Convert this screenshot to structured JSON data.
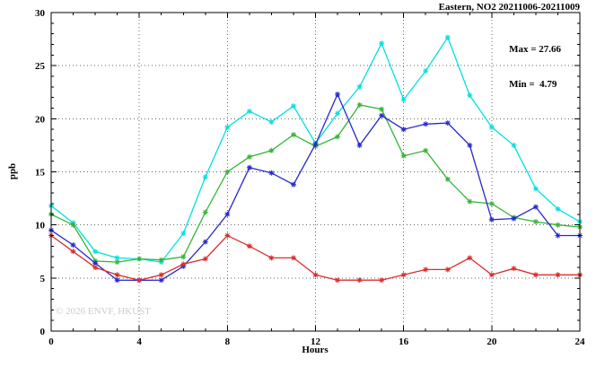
{
  "annotations": {
    "max_label": "Max = 27.66",
    "min_label": "Min =  4.79"
  },
  "watermark": "© 2026 ENVF, HKUST",
  "chart_data": {
    "type": "line",
    "title": "Eastern, NO2 20211006-20211009",
    "xlabel": "Hours",
    "ylabel": "ppb",
    "xlim": [
      0,
      24
    ],
    "ylim": [
      0,
      30
    ],
    "xticks": [
      0,
      4,
      8,
      12,
      16,
      20,
      24
    ],
    "yticks": [
      0,
      5,
      10,
      15,
      20,
      25,
      30
    ],
    "grid": true,
    "legend": "none",
    "max_value": 27.66,
    "min_value": 4.79,
    "x": [
      0,
      1,
      2,
      3,
      4,
      5,
      6,
      7,
      8,
      9,
      10,
      11,
      12,
      13,
      14,
      15,
      16,
      17,
      18,
      19,
      20,
      21,
      22,
      23,
      24
    ],
    "series": [
      {
        "name": "cyan",
        "color": "#00e0e0",
        "values": [
          11.8,
          10.2,
          7.5,
          6.9,
          6.8,
          6.5,
          9.2,
          14.5,
          19.2,
          20.7,
          19.7,
          21.2,
          17.7,
          20.5,
          23.0,
          27.1,
          21.8,
          24.5,
          27.66,
          22.2,
          19.2,
          17.5,
          13.4,
          11.5,
          10.3
        ]
      },
      {
        "name": "green",
        "color": "#35b435",
        "values": [
          11.0,
          10.0,
          6.6,
          6.5,
          6.8,
          6.7,
          7.0,
          11.2,
          15.0,
          16.4,
          17.0,
          18.5,
          17.4,
          18.3,
          21.3,
          20.9,
          16.5,
          17.0,
          14.3,
          12.2,
          12.0,
          10.7,
          10.3,
          10.0,
          9.8
        ]
      },
      {
        "name": "blue",
        "color": "#2828cc",
        "values": [
          9.5,
          8.1,
          6.4,
          4.8,
          4.79,
          4.8,
          6.1,
          8.4,
          11.0,
          15.4,
          14.9,
          13.8,
          17.6,
          22.3,
          17.5,
          20.3,
          19.0,
          19.5,
          19.6,
          17.5,
          10.5,
          10.6,
          11.7,
          9.0,
          9.0
        ]
      },
      {
        "name": "red",
        "color": "#dd2c2c",
        "values": [
          9.0,
          7.5,
          6.0,
          5.3,
          4.79,
          5.3,
          6.3,
          6.8,
          9.0,
          8.0,
          6.9,
          6.9,
          5.3,
          4.8,
          4.8,
          4.8,
          5.3,
          5.8,
          5.8,
          6.9,
          5.3,
          5.9,
          5.3,
          5.3,
          5.3
        ]
      }
    ]
  }
}
